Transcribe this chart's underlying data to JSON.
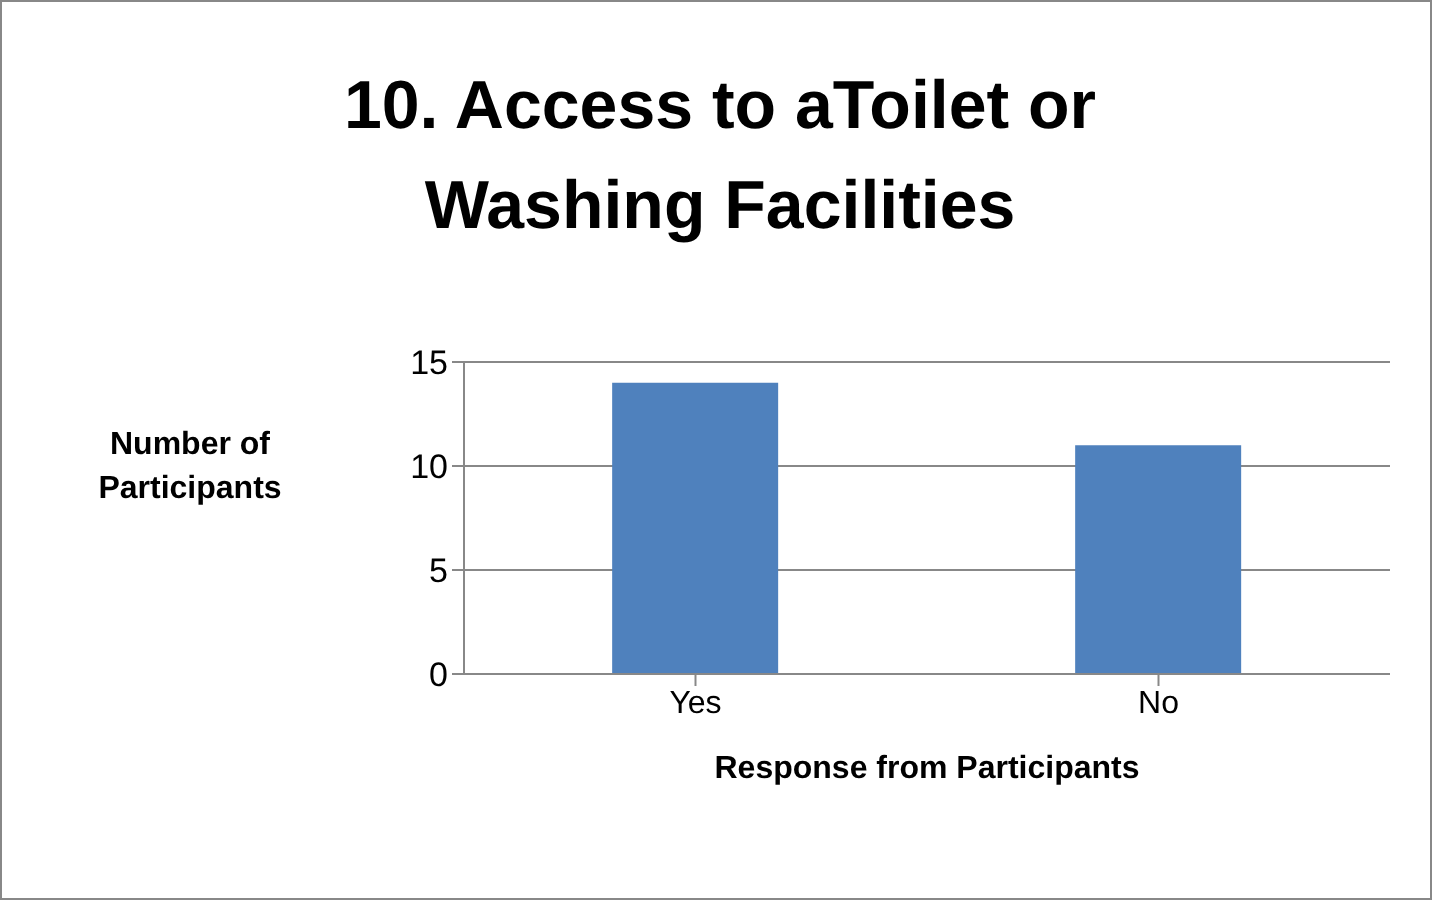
{
  "chart_data": {
    "type": "bar",
    "title": "10. Access to aToilet or Washing Facilities",
    "xlabel": "Response from Participants",
    "ylabel": "Number of Participants",
    "categories": [
      "Yes",
      "No"
    ],
    "series": [
      {
        "color": "#4f81bd",
        "values": [
          14,
          11
        ]
      }
    ],
    "ylim": [
      0,
      15
    ],
    "yticks": [
      0,
      5,
      10,
      15
    ],
    "grid": "y"
  }
}
